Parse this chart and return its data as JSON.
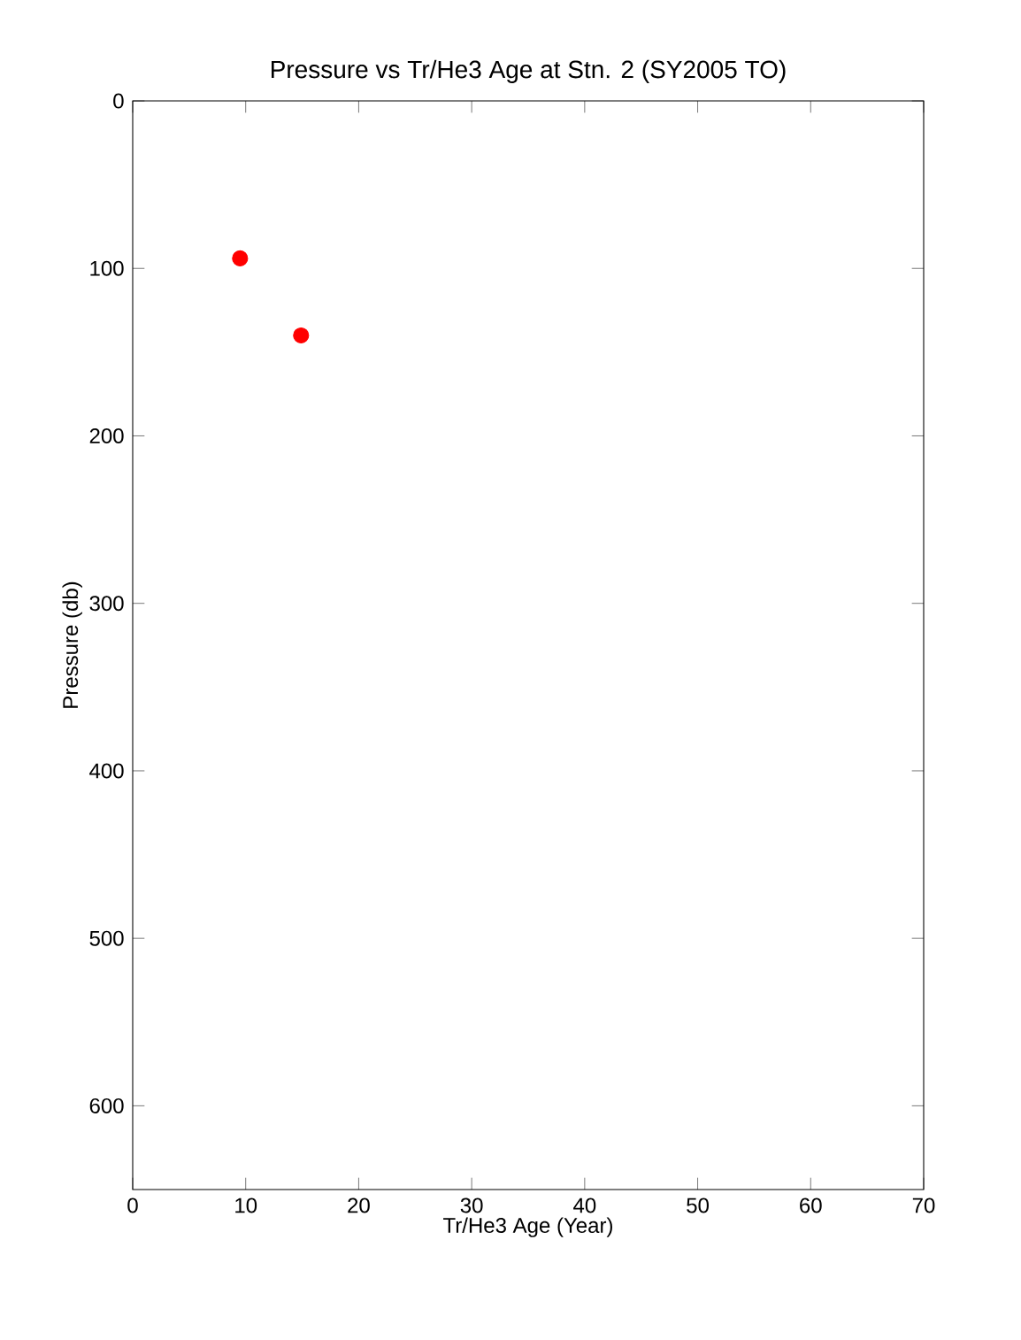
{
  "chart_data": {
    "type": "scatter",
    "title": "Pressure vs Tr/He3 Age at Stn. 2 (SY2005 TO)",
    "xlabel": "Tr/He3 Age (Year)",
    "ylabel": "Pressure (db)",
    "x": [
      9.5,
      14.9
    ],
    "series": [
      {
        "color": "#ff0000",
        "values": [
          94,
          140
        ]
      }
    ],
    "xlim": [
      0,
      70
    ],
    "xticks": [
      0,
      10,
      20,
      30,
      40,
      50,
      60,
      70
    ],
    "ylim": [
      650,
      0
    ],
    "yticks": [
      0,
      100,
      200,
      300,
      400,
      500,
      600
    ],
    "marker": "circle"
  }
}
